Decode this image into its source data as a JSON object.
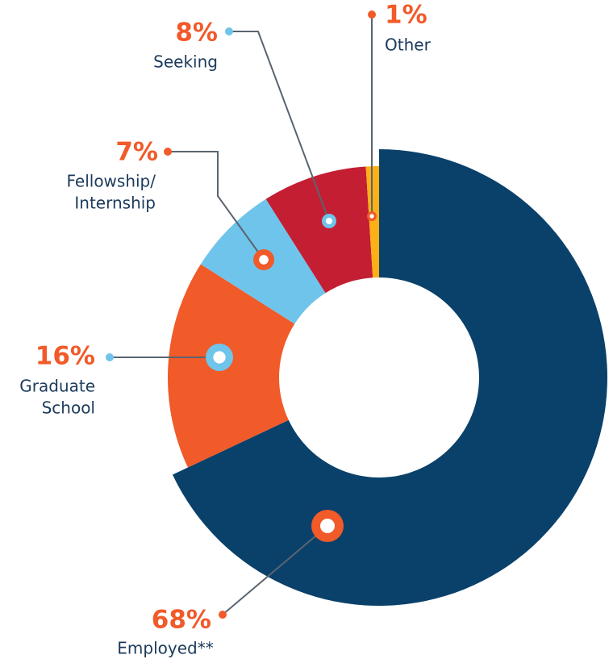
{
  "chart_data": {
    "type": "donut",
    "categories": [
      [
        "Employed**"
      ],
      [
        "Graduate",
        "School"
      ],
      [
        "Fellowship/",
        "Internship"
      ],
      [
        "Seeking"
      ],
      [
        "Other"
      ]
    ],
    "values": [
      68,
      16,
      7,
      8,
      1
    ],
    "value_labels": [
      "68%",
      "16%",
      "7%",
      "8%",
      "1%"
    ],
    "colors": [
      "#0a416a",
      "#f15a29",
      "#6ec4ea",
      "#c41e33",
      "#fbb017"
    ]
  }
}
